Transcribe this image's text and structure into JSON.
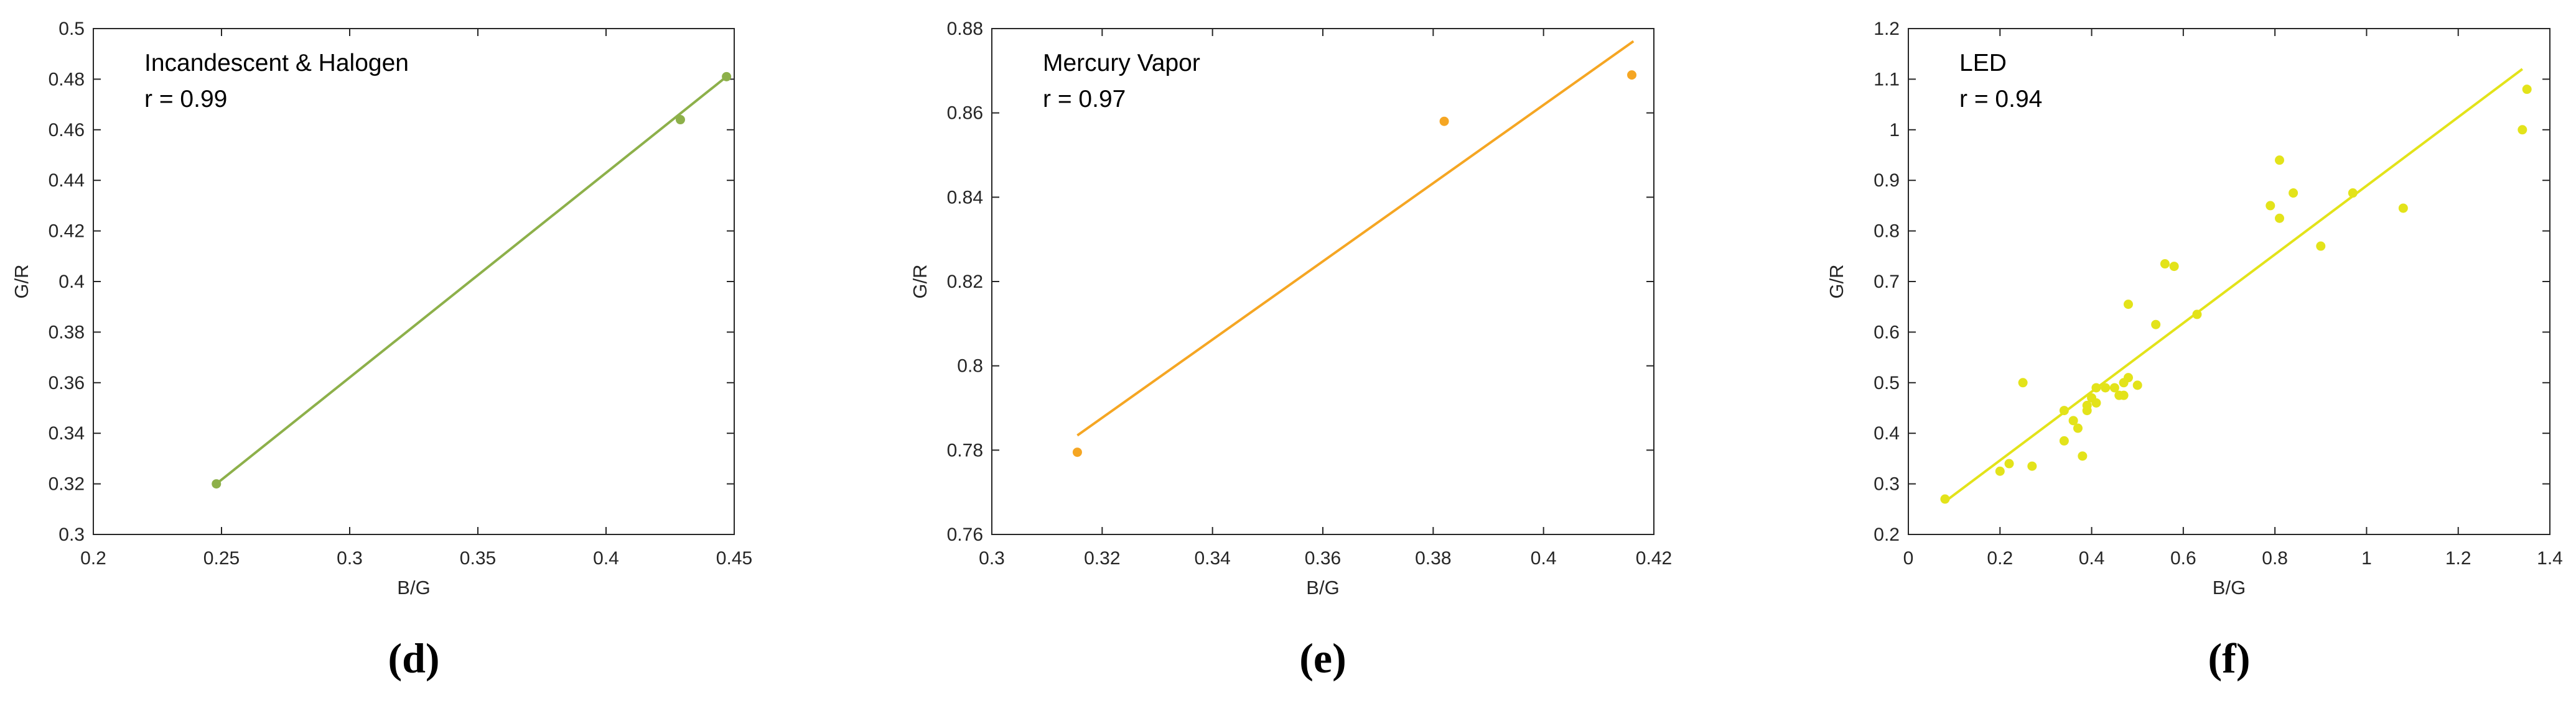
{
  "panel_labels": [
    "(d)",
    "(e)",
    "(f)"
  ],
  "chart_data": [
    {
      "panel": "(d)",
      "type": "scatter",
      "annotation": [
        "Incandescent & Halogen",
        "r = 0.99"
      ],
      "xlabel": "B/G",
      "ylabel": "G/R",
      "xlim": [
        0.2,
        0.45
      ],
      "ylim": [
        0.3,
        0.5
      ],
      "xticks": [
        0.2,
        0.25,
        0.3,
        0.35,
        0.4,
        0.45
      ],
      "yticks": [
        0.3,
        0.32,
        0.34,
        0.36,
        0.38,
        0.4,
        0.42,
        0.44,
        0.46,
        0.48,
        0.5
      ],
      "xtick_labels": [
        "0.2",
        "0.25",
        "0.3",
        "0.35",
        "0.4",
        "0.45"
      ],
      "ytick_labels": [
        "0.3",
        "0.32",
        "0.34",
        "0.36",
        "0.38",
        "0.4",
        "0.42",
        "0.44",
        "0.46",
        "0.48",
        "0.5"
      ],
      "color": "#8db04a",
      "points": [
        [
          0.248,
          0.32
        ],
        [
          0.429,
          0.464
        ],
        [
          0.447,
          0.481
        ]
      ],
      "fit_line": [
        [
          0.248,
          0.32
        ],
        [
          0.447,
          0.481
        ]
      ],
      "grid": false,
      "legend": "none"
    },
    {
      "panel": "(e)",
      "type": "scatter",
      "annotation": [
        "Mercury Vapor",
        "r = 0.97"
      ],
      "xlabel": "B/G",
      "ylabel": "G/R",
      "xlim": [
        0.3,
        0.42
      ],
      "ylim": [
        0.76,
        0.88
      ],
      "xticks": [
        0.3,
        0.32,
        0.34,
        0.36,
        0.38,
        0.4,
        0.42
      ],
      "yticks": [
        0.76,
        0.78,
        0.8,
        0.82,
        0.84,
        0.86,
        0.88
      ],
      "xtick_labels": [
        "0.3",
        "0.32",
        "0.34",
        "0.36",
        "0.38",
        "0.4",
        "0.42"
      ],
      "ytick_labels": [
        "0.76",
        "0.78",
        "0.8",
        "0.82",
        "0.84",
        "0.86",
        "0.88"
      ],
      "color": "#f5a623",
      "points": [
        [
          0.3155,
          0.7795
        ],
        [
          0.382,
          0.858
        ],
        [
          0.416,
          0.869
        ]
      ],
      "fit_line": [
        [
          0.3155,
          0.7835
        ],
        [
          0.4163,
          0.877
        ]
      ],
      "grid": false,
      "legend": "none"
    },
    {
      "panel": "(f)",
      "type": "scatter",
      "annotation": [
        "LED",
        "r = 0.94"
      ],
      "xlabel": "B/G",
      "ylabel": "G/R",
      "xlim": [
        0,
        1.4
      ],
      "ylim": [
        0.2,
        1.2
      ],
      "xticks": [
        0,
        0.2,
        0.4,
        0.6,
        0.8,
        1,
        1.2,
        1.4
      ],
      "yticks": [
        0.2,
        0.3,
        0.4,
        0.5,
        0.6,
        0.7,
        0.8,
        0.9,
        1,
        1.1,
        1.2
      ],
      "xtick_labels": [
        "0",
        "0.2",
        "0.4",
        "0.6",
        "0.8",
        "1",
        "1.2",
        "1.4"
      ],
      "ytick_labels": [
        "0.2",
        "0.3",
        "0.4",
        "0.5",
        "0.6",
        "0.7",
        "0.8",
        "0.9",
        "1",
        "1.1",
        "1.2"
      ],
      "color": "#e3e31a",
      "points": [
        [
          0.08,
          0.27
        ],
        [
          0.2,
          0.325
        ],
        [
          0.22,
          0.34
        ],
        [
          0.25,
          0.5
        ],
        [
          0.27,
          0.335
        ],
        [
          0.34,
          0.385
        ],
        [
          0.34,
          0.445
        ],
        [
          0.36,
          0.425
        ],
        [
          0.37,
          0.41
        ],
        [
          0.38,
          0.355
        ],
        [
          0.39,
          0.445
        ],
        [
          0.39,
          0.455
        ],
        [
          0.4,
          0.47
        ],
        [
          0.41,
          0.46
        ],
        [
          0.41,
          0.49
        ],
        [
          0.43,
          0.49
        ],
        [
          0.45,
          0.49
        ],
        [
          0.46,
          0.475
        ],
        [
          0.47,
          0.475
        ],
        [
          0.47,
          0.5
        ],
        [
          0.48,
          0.51
        ],
        [
          0.48,
          0.655
        ],
        [
          0.5,
          0.495
        ],
        [
          0.54,
          0.615
        ],
        [
          0.56,
          0.735
        ],
        [
          0.58,
          0.73
        ],
        [
          0.63,
          0.635
        ],
        [
          0.79,
          0.85
        ],
        [
          0.81,
          0.825
        ],
        [
          0.81,
          0.94
        ],
        [
          0.84,
          0.875
        ],
        [
          0.9,
          0.77
        ],
        [
          0.97,
          0.875
        ],
        [
          1.08,
          0.845
        ],
        [
          1.34,
          1.0
        ],
        [
          1.35,
          1.08
        ]
      ],
      "fit_line": [
        [
          0.08,
          0.265
        ],
        [
          1.34,
          1.12
        ]
      ],
      "grid": false,
      "legend": "none"
    }
  ]
}
